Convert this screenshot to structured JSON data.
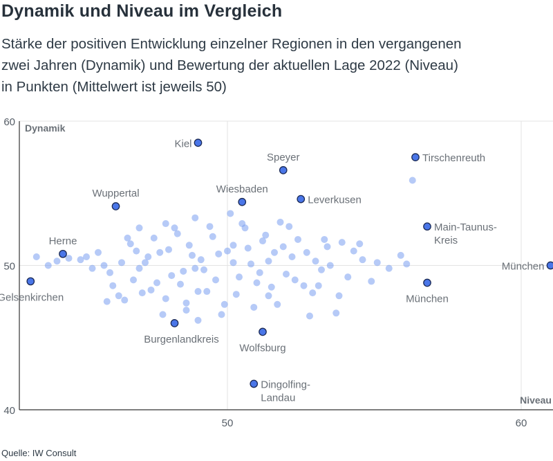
{
  "title": "Dynamik und Niveau im Vergleich",
  "subtitle_lines": [
    "Stärke der positiven Entwicklung einzelner Regionen in den vergangenen",
    "zwei Jahren (Dynamik) und Bewertung der aktuellen Lage 2022 (Niveau)",
    "in Punkten (Mittelwert ist jeweils 50)"
  ],
  "source": "Quelle: IW Consult",
  "colors": {
    "highlight_fill": "#4a76e8",
    "highlight_stroke": "#1b2a55",
    "cloud_fill": "#7a9ef0",
    "grid": "#e3e3e3",
    "axis": "#333333"
  },
  "chart_data": {
    "type": "scatter",
    "xlabel": "Niveau",
    "ylabel": "Dynamik",
    "xlim": [
      43.1,
      61.0
    ],
    "ylim": [
      40,
      60
    ],
    "x_ticks": [
      50,
      60
    ],
    "x_tick_labels": [
      "50",
      "60"
    ],
    "y_ticks": [
      40,
      50,
      60
    ],
    "y_tick_labels": [
      "40",
      "50",
      "60"
    ],
    "grid": true,
    "highlighted": [
      {
        "label": [
          "Kiel"
        ],
        "x": 49.0,
        "y": 58.5
      },
      {
        "label": [
          "Speyer"
        ],
        "x": 51.9,
        "y": 56.6
      },
      {
        "label": [
          "Tirschenreuth"
        ],
        "x": 56.4,
        "y": 57.5
      },
      {
        "label": [
          "Wuppertal"
        ],
        "x": 46.2,
        "y": 54.1
      },
      {
        "label": [
          "Wiesbaden"
        ],
        "x": 50.5,
        "y": 54.4
      },
      {
        "label": [
          "Leverkusen"
        ],
        "x": 52.5,
        "y": 54.6
      },
      {
        "label": [
          "Main-Taunus-",
          "Kreis"
        ],
        "x": 56.8,
        "y": 52.7
      },
      {
        "label": [
          "Herne"
        ],
        "x": 44.4,
        "y": 50.8
      },
      {
        "label": [
          "München"
        ],
        "x": 61.0,
        "y": 50.0
      },
      {
        "label": [
          "Gelsenkirchen"
        ],
        "x": 43.3,
        "y": 48.9
      },
      {
        "label": [
          "München"
        ],
        "x": 56.8,
        "y": 48.8
      },
      {
        "label": [
          "Burgenlandkreis"
        ],
        "x": 48.2,
        "y": 46.0
      },
      {
        "label": [
          "Wolfsburg"
        ],
        "x": 51.2,
        "y": 45.4
      },
      {
        "label": [
          "Dingolfing-",
          "Landau"
        ],
        "x": 50.9,
        "y": 41.8
      }
    ],
    "others": [
      [
        43.5,
        50.6
      ],
      [
        43.9,
        50.0
      ],
      [
        44.2,
        50.3
      ],
      [
        44.6,
        50.5
      ],
      [
        45.0,
        50.4
      ],
      [
        45.2,
        50.6
      ],
      [
        45.4,
        49.8
      ],
      [
        45.6,
        50.9
      ],
      [
        45.8,
        50.0
      ],
      [
        46.0,
        49.5
      ],
      [
        46.1,
        48.6
      ],
      [
        46.3,
        47.9
      ],
      [
        45.9,
        47.5
      ],
      [
        46.5,
        47.6
      ],
      [
        46.4,
        50.2
      ],
      [
        46.8,
        49.0
      ],
      [
        46.9,
        51.0
      ],
      [
        47.0,
        49.8
      ],
      [
        47.3,
        50.6
      ],
      [
        47.5,
        51.9
      ],
      [
        47.7,
        50.9
      ],
      [
        47.9,
        52.9
      ],
      [
        47.4,
        48.3
      ],
      [
        47.8,
        46.6
      ],
      [
        48.1,
        49.3
      ],
      [
        48.3,
        52.2
      ],
      [
        48.5,
        49.6
      ],
      [
        48.6,
        47.4
      ],
      [
        48.7,
        51.4
      ],
      [
        48.9,
        53.3
      ],
      [
        49.1,
        50.4
      ],
      [
        49.0,
        46.2
      ],
      [
        49.3,
        48.2
      ],
      [
        49.5,
        52.0
      ],
      [
        49.7,
        50.8
      ],
      [
        49.9,
        47.3
      ],
      [
        50.1,
        53.6
      ],
      [
        50.2,
        51.4
      ],
      [
        50.4,
        49.2
      ],
      [
        50.6,
        52.6
      ],
      [
        50.8,
        50.1
      ],
      [
        51.0,
        48.8
      ],
      [
        51.2,
        51.7
      ],
      [
        51.4,
        47.9
      ],
      [
        51.6,
        50.9
      ],
      [
        51.8,
        53.0
      ],
      [
        52.0,
        49.4
      ],
      [
        52.2,
        50.6
      ],
      [
        52.4,
        51.8
      ],
      [
        52.6,
        48.6
      ],
      [
        52.8,
        46.5
      ],
      [
        53.0,
        50.3
      ],
      [
        53.2,
        49.7
      ],
      [
        53.4,
        51.3
      ],
      [
        53.7,
        46.7
      ],
      [
        53.8,
        47.9
      ],
      [
        54.1,
        49.2
      ],
      [
        54.3,
        51.0
      ],
      [
        54.5,
        51.5
      ],
      [
        54.6,
        50.4
      ],
      [
        54.9,
        48.9
      ],
      [
        55.1,
        50.2
      ],
      [
        55.5,
        49.8
      ],
      [
        55.9,
        50.7
      ],
      [
        56.1,
        50.1
      ],
      [
        56.3,
        55.9
      ],
      [
        47.2,
        50.2
      ],
      [
        47.6,
        48.8
      ],
      [
        48.0,
        51.1
      ],
      [
        48.4,
        48.7
      ],
      [
        48.8,
        50.7
      ],
      [
        49.2,
        49.7
      ],
      [
        49.6,
        49.0
      ],
      [
        50.0,
        51.0
      ],
      [
        50.3,
        48.0
      ],
      [
        50.7,
        51.2
      ],
      [
        51.1,
        49.5
      ],
      [
        51.5,
        48.5
      ],
      [
        51.9,
        51.3
      ],
      [
        52.3,
        49.0
      ],
      [
        52.7,
        50.9
      ],
      [
        53.1,
        48.6
      ],
      [
        53.5,
        50.0
      ],
      [
        46.7,
        51.5
      ],
      [
        47.1,
        48.1
      ],
      [
        48.2,
        52.6
      ],
      [
        49.4,
        52.7
      ],
      [
        50.5,
        52.9
      ],
      [
        51.3,
        52.1
      ],
      [
        52.1,
        52.7
      ],
      [
        49.8,
        46.6
      ],
      [
        50.9,
        47.1
      ],
      [
        48.6,
        46.9
      ],
      [
        51.7,
        47.3
      ],
      [
        52.9,
        48.1
      ],
      [
        53.3,
        51.8
      ],
      [
        47.9,
        47.7
      ],
      [
        46.6,
        51.9
      ],
      [
        53.9,
        51.6
      ],
      [
        47.0,
        52.6
      ],
      [
        49.0,
        48.2
      ],
      [
        51.4,
        50.3
      ],
      [
        50.2,
        50.2
      ],
      [
        48.9,
        49.8
      ]
    ]
  }
}
